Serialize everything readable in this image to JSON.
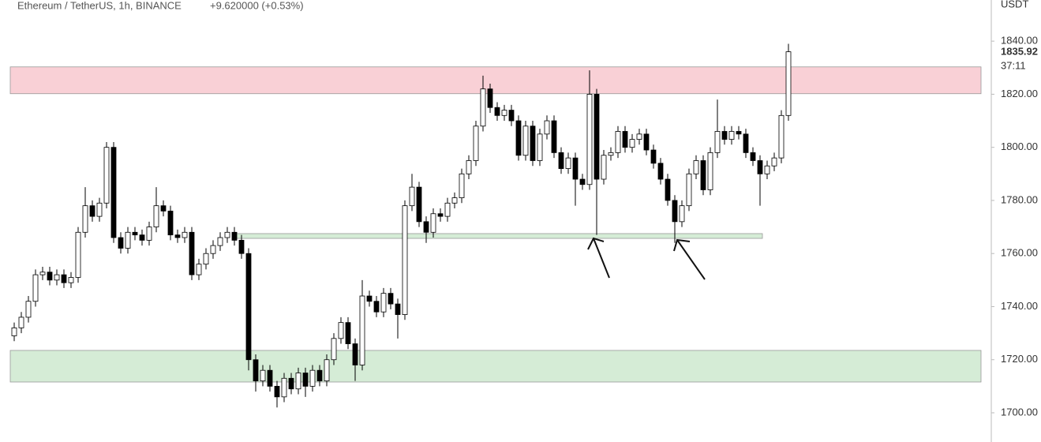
{
  "chart_data": {
    "type": "candlestick",
    "title": "Ethereum / TetherUS, 1h, BINANCE",
    "change": "+9.620000 (+0.53%)",
    "y_unit": "USDT",
    "last_price": 1835.92,
    "countdown": "37:11",
    "ylim": [
      1689.0,
      1855.5
    ],
    "yticks": [
      {
        "value": 1700,
        "label": "1700.00"
      },
      {
        "value": 1720,
        "label": "1720.00"
      },
      {
        "value": 1740,
        "label": "1740.00"
      },
      {
        "value": 1760,
        "label": "1760.00"
      },
      {
        "value": 1780,
        "label": "1780.00"
      },
      {
        "value": 1800,
        "label": "1800.00"
      },
      {
        "value": 1820,
        "label": "1820.00"
      },
      {
        "value": 1840,
        "label": "1840.00"
      }
    ],
    "zones": [
      {
        "from": 1820.2,
        "to": 1830.3,
        "color": "#f9d0d6"
      },
      {
        "from": 1711.6,
        "to": 1723.5,
        "color": "#d5ecd6"
      },
      {
        "from": 1765.7,
        "to": 1767.5,
        "color": "#d5ecd6"
      }
    ],
    "open": [
      1729,
      1732,
      1736,
      1742,
      1752,
      1753,
      1750,
      1752,
      1749,
      1751,
      1768,
      1778,
      1774,
      1779,
      1800,
      1766,
      1762,
      1768,
      1767,
      1765,
      1770,
      1778,
      1776,
      1767,
      1766,
      1768,
      1752,
      1756,
      1760,
      1763,
      1766,
      1768,
      1765,
      1760,
      1720,
      1712,
      1716,
      1710,
      1706,
      1713,
      1709,
      1715,
      1710,
      1716,
      1712,
      1720,
      1728,
      1734,
      1726,
      1718,
      1744,
      1742,
      1738,
      1745,
      1741,
      1737,
      1778,
      1785,
      1772,
      1768,
      1775,
      1774,
      1779,
      1781,
      1790,
      1795,
      1808,
      1822,
      1815,
      1812,
      1814,
      1810,
      1797,
      1808,
      1795,
      1805,
      1810,
      1798,
      1792,
      1796,
      1788,
      1786,
      1820,
      1788,
      1797,
      1798,
      1806,
      1800,
      1803,
      1805,
      1799,
      1794,
      1788,
      1780,
      1772,
      1778,
      1790,
      1795,
      1784,
      1798,
      1806,
      1803,
      1806,
      1805,
      1798,
      1795,
      1790,
      1793,
      1796,
      1812
    ],
    "high": [
      1734,
      1738,
      1744,
      1754,
      1755,
      1755,
      1754,
      1754,
      1753,
      1770,
      1785,
      1780,
      1781,
      1802,
      1802,
      1768,
      1770,
      1770,
      1769,
      1772,
      1785,
      1780,
      1778,
      1769,
      1770,
      1770,
      1758,
      1762,
      1765,
      1768,
      1770,
      1770,
      1767,
      1762,
      1722,
      1718,
      1718,
      1712,
      1715,
      1715,
      1717,
      1717,
      1718,
      1718,
      1722,
      1730,
      1736,
      1736,
      1728,
      1750,
      1746,
      1744,
      1747,
      1747,
      1743,
      1780,
      1790,
      1787,
      1774,
      1777,
      1777,
      1781,
      1783,
      1792,
      1797,
      1810,
      1827,
      1824,
      1817,
      1816,
      1816,
      1812,
      1810,
      1810,
      1807,
      1812,
      1812,
      1800,
      1798,
      1798,
      1790,
      1829,
      1822,
      1799,
      1800,
      1808,
      1808,
      1805,
      1807,
      1807,
      1801,
      1796,
      1790,
      1782,
      1780,
      1792,
      1797,
      1797,
      1800,
      1818,
      1808,
      1808,
      1808,
      1807,
      1800,
      1797,
      1795,
      1798,
      1814,
      1839
    ],
    "low": [
      1727,
      1730,
      1734,
      1740,
      1750,
      1748,
      1748,
      1747,
      1747,
      1749,
      1766,
      1772,
      1772,
      1777,
      1764,
      1760,
      1760,
      1765,
      1763,
      1763,
      1768,
      1774,
      1765,
      1764,
      1764,
      1750,
      1750,
      1754,
      1758,
      1761,
      1764,
      1763,
      1758,
      1716,
      1708,
      1710,
      1708,
      1702,
      1704,
      1707,
      1707,
      1706,
      1708,
      1710,
      1710,
      1718,
      1726,
      1724,
      1712,
      1716,
      1740,
      1736,
      1736,
      1739,
      1728,
      1735,
      1776,
      1770,
      1764,
      1766,
      1772,
      1772,
      1777,
      1779,
      1788,
      1793,
      1806,
      1813,
      1810,
      1810,
      1808,
      1795,
      1795,
      1793,
      1793,
      1803,
      1796,
      1790,
      1790,
      1778,
      1784,
      1784,
      1767,
      1786,
      1795,
      1796,
      1798,
      1798,
      1801,
      1797,
      1792,
      1786,
      1778,
      1764,
      1770,
      1776,
      1788,
      1782,
      1782,
      1796,
      1801,
      1801,
      1803,
      1796,
      1793,
      1778,
      1788,
      1791,
      1794,
      1810
    ],
    "close": [
      1732,
      1736,
      1742,
      1752,
      1753,
      1750,
      1752,
      1749,
      1751,
      1768,
      1778,
      1774,
      1779,
      1800,
      1766,
      1762,
      1768,
      1767,
      1765,
      1770,
      1778,
      1776,
      1767,
      1766,
      1768,
      1752,
      1756,
      1760,
      1763,
      1766,
      1768,
      1765,
      1760,
      1720,
      1712,
      1716,
      1710,
      1706,
      1713,
      1709,
      1715,
      1710,
      1716,
      1712,
      1720,
      1728,
      1734,
      1726,
      1718,
      1744,
      1742,
      1738,
      1745,
      1741,
      1737,
      1778,
      1785,
      1772,
      1768,
      1775,
      1774,
      1779,
      1781,
      1790,
      1795,
      1808,
      1822,
      1815,
      1812,
      1814,
      1810,
      1797,
      1808,
      1795,
      1805,
      1810,
      1798,
      1792,
      1796,
      1788,
      1786,
      1820,
      1788,
      1797,
      1798,
      1806,
      1800,
      1803,
      1805,
      1799,
      1794,
      1788,
      1780,
      1772,
      1778,
      1790,
      1795,
      1784,
      1798,
      1806,
      1803,
      1806,
      1805,
      1798,
      1795,
      1790,
      1793,
      1796,
      1812,
      1836
    ],
    "up_color": "#ffffff",
    "down_color": "#000000"
  }
}
